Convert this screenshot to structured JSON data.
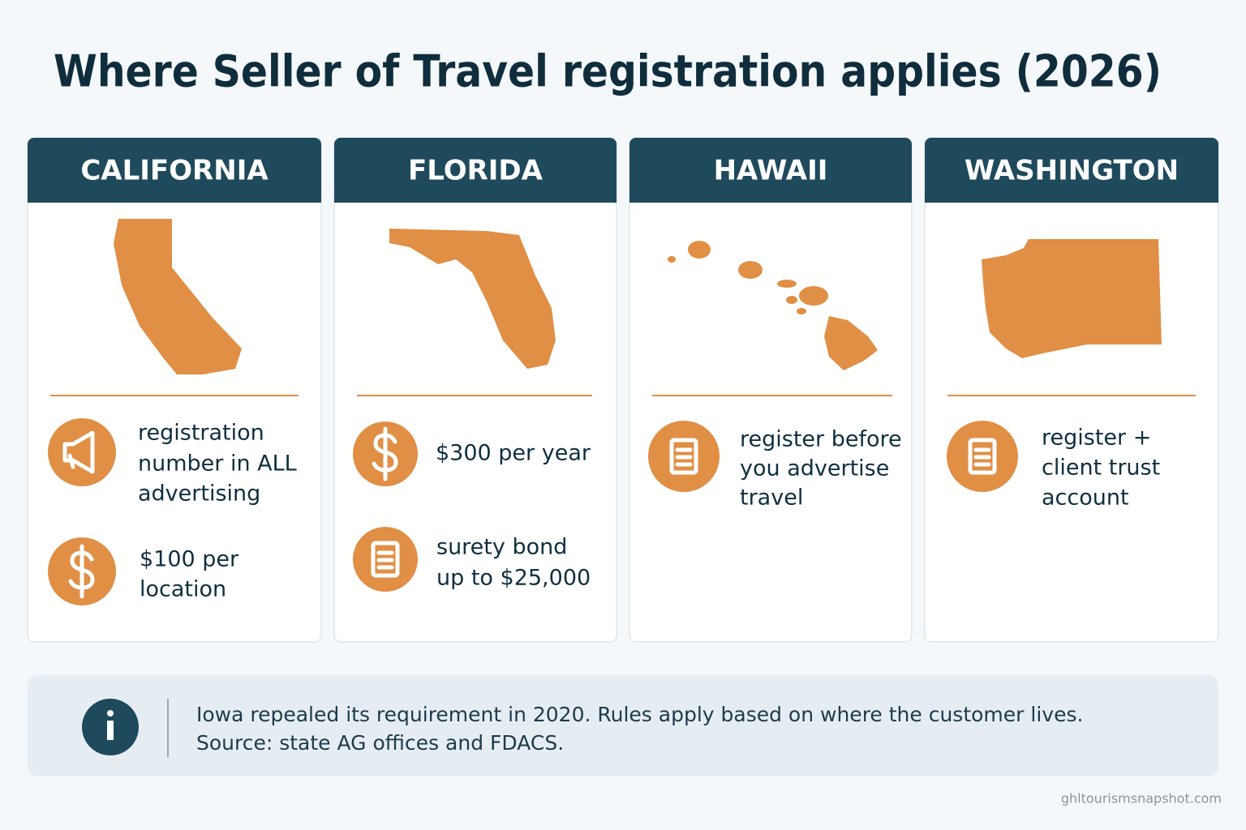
{
  "title": "Where Seller of Travel registration applies (2026)",
  "cards": [
    {
      "state": "CALIFORNIA",
      "items": [
        {
          "lines": [
            "registration",
            "number in ALL",
            "advertising"
          ]
        },
        {
          "lines": [
            "$100 per",
            "location"
          ]
        }
      ]
    },
    {
      "state": "FLORIDA",
      "items": [
        {
          "lines": [
            "$300 per year"
          ]
        },
        {
          "lines": [
            "surety bond",
            "up to $25,000"
          ]
        }
      ]
    },
    {
      "state": "HAWAII",
      "items": [
        {
          "lines": [
            "register before",
            "you advertise",
            "travel"
          ]
        }
      ]
    },
    {
      "state": "WASHINGTON",
      "items": [
        {
          "lines": [
            "register +",
            "client trust",
            "account"
          ]
        }
      ]
    }
  ],
  "note": {
    "lines": [
      "Iowa repealed its requirement in 2020. Rules apply based on where the customer lives.",
      "Source: state AG offices and FDACS."
    ]
  },
  "footer": "ghltourismsnapshot.com"
}
